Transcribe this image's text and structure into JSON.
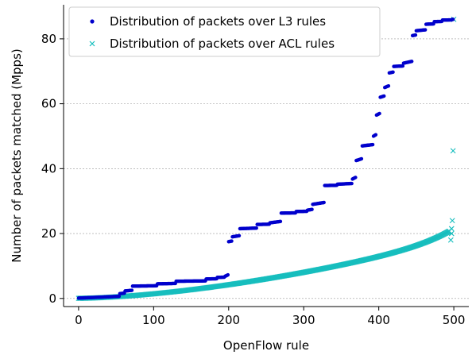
{
  "chart_data": {
    "type": "scatter",
    "xlabel": "OpenFlow rule",
    "ylabel": "Number of packets matched (Mpps)",
    "xlim": [
      -20,
      520
    ],
    "ylim": [
      -2.5,
      90.5
    ],
    "xticks": [
      0,
      100,
      200,
      300,
      400,
      500
    ],
    "yticks": [
      0,
      20,
      40,
      60,
      80
    ],
    "grid": "horizontal dashed",
    "legend_position": "top-left",
    "series": [
      {
        "name": "Distribution of packets over L3 rules",
        "marker": "dot",
        "color": "#0000cc",
        "step_segments": [
          [
            0,
            0.1
          ],
          [
            40,
            0.5
          ],
          [
            55,
            1.5
          ],
          [
            62,
            2.3
          ],
          [
            72,
            3.8
          ],
          [
            105,
            4.5
          ],
          [
            130,
            5.3
          ],
          [
            170,
            6.0
          ],
          [
            185,
            6.5
          ],
          [
            195,
            6.8
          ],
          [
            200,
            17.5
          ],
          [
            205,
            19.0
          ],
          [
            215,
            21.5
          ],
          [
            238,
            22.8
          ],
          [
            255,
            23.3
          ],
          [
            270,
            26.3
          ],
          [
            290,
            26.8
          ],
          [
            305,
            27.2
          ],
          [
            312,
            29.0
          ],
          [
            328,
            34.8
          ],
          [
            345,
            35.2
          ],
          [
            365,
            36.8
          ],
          [
            370,
            42.5
          ],
          [
            378,
            47.0
          ],
          [
            393,
            50.0
          ],
          [
            397,
            56.5
          ],
          [
            402,
            62.0
          ],
          [
            408,
            65.0
          ],
          [
            414,
            69.5
          ],
          [
            420,
            71.5
          ],
          [
            433,
            72.5
          ],
          [
            445,
            81.0
          ],
          [
            450,
            82.5
          ],
          [
            463,
            84.5
          ],
          [
            474,
            85.3
          ],
          [
            485,
            85.8
          ],
          [
            498,
            86.0
          ]
        ],
        "point_count": 500
      },
      {
        "name": "Distribution of packets over ACL rules",
        "marker": "x",
        "color": "#17bebe",
        "curve": {
          "form": "y = 18 * (x/495)^1.6 with sharp rise near x=495",
          "max_x": 498
        },
        "outliers": [
          [
            496,
            18.0
          ],
          [
            497,
            20.0
          ],
          [
            497,
            21.5
          ],
          [
            498,
            24.0
          ],
          [
            499,
            45.5
          ],
          [
            500,
            86.0
          ]
        ],
        "point_count": 500
      }
    ]
  }
}
